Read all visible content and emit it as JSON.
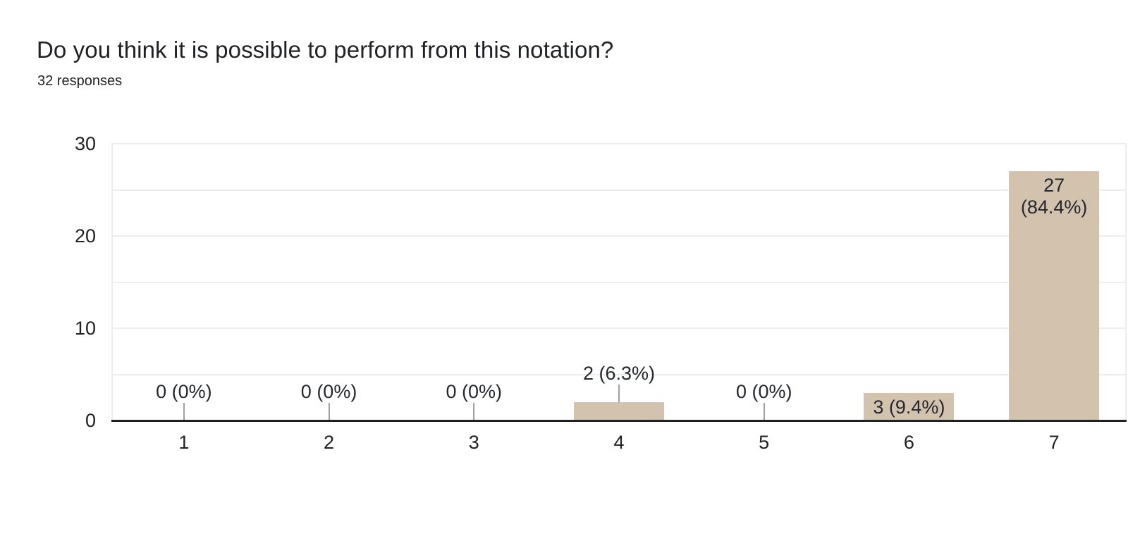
{
  "header": {
    "title": "Do you think it is possible to perform from this notation?",
    "subtitle": "32 responses"
  },
  "chart_data": {
    "type": "bar",
    "title": "Do you think it is possible to perform from this notation?",
    "subtitle": "32 responses",
    "categories": [
      "1",
      "2",
      "3",
      "4",
      "5",
      "6",
      "7"
    ],
    "values": [
      0,
      0,
      0,
      2,
      0,
      3,
      27
    ],
    "label_lines": [
      [
        "0 (0%)"
      ],
      [
        "0 (0%)"
      ],
      [
        "0 (0%)"
      ],
      [
        "2 (6.3%)"
      ],
      [
        "0 (0%)"
      ],
      [
        "3 (9.4%)"
      ],
      [
        "27",
        "(84.4%)"
      ]
    ],
    "label_positions": [
      "above",
      "above",
      "above",
      "above",
      "above",
      "inside",
      "inside"
    ],
    "xlabel": "",
    "ylabel": "",
    "ylim": [
      0,
      30
    ],
    "yticks": [
      0,
      10,
      20,
      30
    ],
    "grid_step": 5,
    "grid": "on",
    "legend_position": "none",
    "colors": {
      "bar": "#d3c3ae",
      "axis": "#212121",
      "gridline": "#ececec",
      "stem": "#9e9e9e",
      "text": "#202124",
      "label_text": "#24282e"
    }
  }
}
